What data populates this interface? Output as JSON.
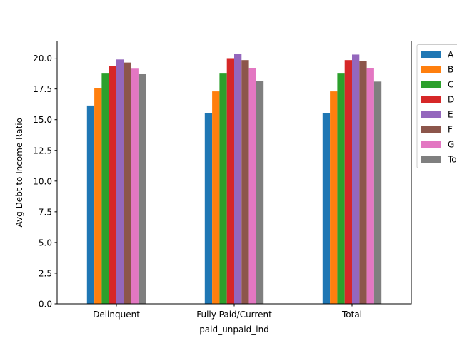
{
  "chart_data": {
    "type": "bar",
    "title": "",
    "xlabel": "paid_unpaid_ind",
    "ylabel": "Avg Debt to Income Ratio",
    "ylim": [
      0,
      21.4
    ],
    "yticks": [
      0.0,
      2.5,
      5.0,
      7.5,
      10.0,
      12.5,
      15.0,
      17.5,
      20.0
    ],
    "ytick_labels": [
      "0.0",
      "2.5",
      "5.0",
      "7.5",
      "10.0",
      "12.5",
      "15.0",
      "17.5",
      "20.0"
    ],
    "categories": [
      "Delinquent",
      "Fully Paid/Current",
      "Total"
    ],
    "legend_position": "outside right, top",
    "grid": false,
    "series": [
      {
        "name": "A",
        "color": "#1f77b4",
        "values": [
          16.15,
          15.55,
          15.55
        ]
      },
      {
        "name": "B",
        "color": "#ff7f0e",
        "values": [
          17.55,
          17.3,
          17.3
        ]
      },
      {
        "name": "C",
        "color": "#2ca02c",
        "values": [
          18.75,
          18.75,
          18.75
        ]
      },
      {
        "name": "D",
        "color": "#d62728",
        "values": [
          19.35,
          19.95,
          19.85
        ]
      },
      {
        "name": "E",
        "color": "#9467bd",
        "values": [
          19.9,
          20.35,
          20.3
        ]
      },
      {
        "name": "F",
        "color": "#8c564b",
        "values": [
          19.65,
          19.85,
          19.8
        ]
      },
      {
        "name": "G",
        "color": "#e377c2",
        "values": [
          19.15,
          19.2,
          19.2
        ]
      },
      {
        "name": "To",
        "color": "#7f7f7f",
        "values": [
          18.7,
          18.15,
          18.1
        ]
      }
    ]
  }
}
